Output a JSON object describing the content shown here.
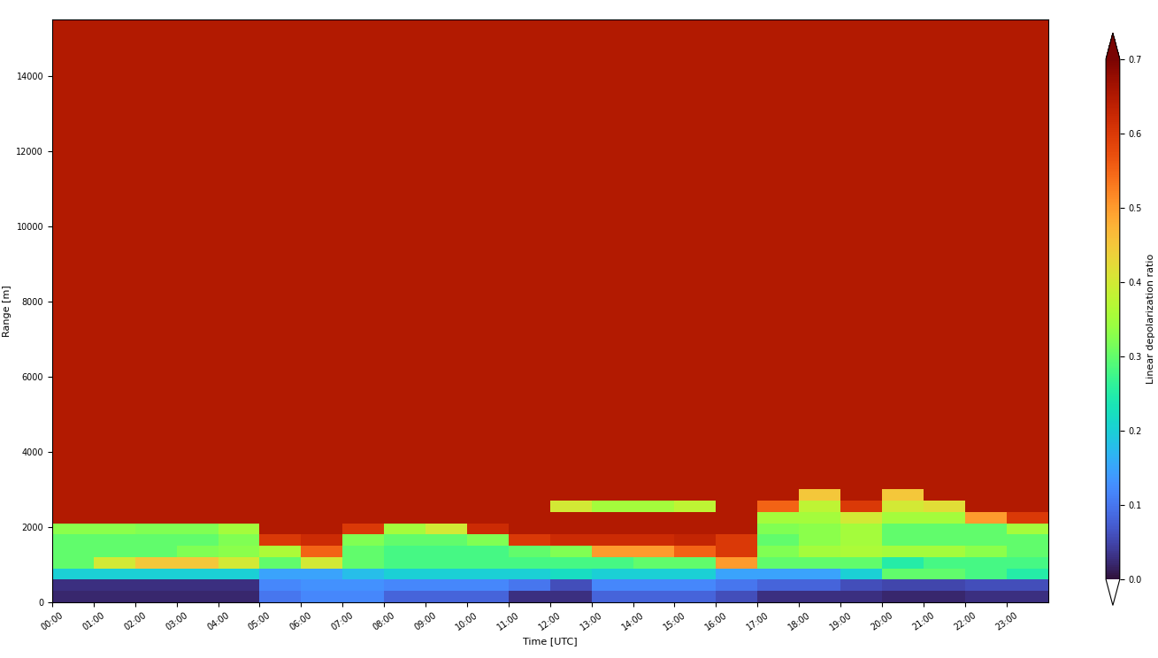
{
  "chart_data": {
    "type": "heatmap",
    "xlabel": "Time [UTC]",
    "ylabel": "Range [m]",
    "x_edges": [
      0,
      1,
      2,
      3,
      4,
      5,
      6,
      7,
      8,
      9,
      10,
      11,
      12,
      13,
      14,
      15,
      16,
      17,
      18,
      19,
      20,
      21,
      22,
      23,
      24
    ],
    "y_edges": [
      0,
      300,
      600,
      900,
      1200,
      1500,
      1800,
      2100,
      2400,
      2700,
      3000,
      15500
    ],
    "cells": [
      [
        0.02,
        0.02,
        0.02,
        0.02,
        0.02,
        0.1,
        0.12,
        0.12,
        0.08,
        0.08,
        0.08,
        0.03,
        0.03,
        0.08,
        0.08,
        0.08,
        0.06,
        0.03,
        0.03,
        0.03,
        0.02,
        0.02,
        0.03,
        0.03
      ],
      [
        0.03,
        0.03,
        0.03,
        0.03,
        0.03,
        0.12,
        0.13,
        0.13,
        0.12,
        0.12,
        0.12,
        0.1,
        0.06,
        0.12,
        0.12,
        0.12,
        0.1,
        0.08,
        0.08,
        0.06,
        0.05,
        0.05,
        0.06,
        0.06
      ],
      [
        0.2,
        0.2,
        0.2,
        0.2,
        0.2,
        0.15,
        0.15,
        0.18,
        0.2,
        0.2,
        0.2,
        0.2,
        0.22,
        0.2,
        0.2,
        0.2,
        0.15,
        0.15,
        0.15,
        0.2,
        0.3,
        0.3,
        0.28,
        0.25
      ],
      [
        0.3,
        0.4,
        0.45,
        0.45,
        0.4,
        0.3,
        0.4,
        0.3,
        0.28,
        0.28,
        0.28,
        0.28,
        0.28,
        0.28,
        0.3,
        0.3,
        0.5,
        0.3,
        0.3,
        0.3,
        0.25,
        0.28,
        0.28,
        0.28
      ],
      [
        0.3,
        0.3,
        0.3,
        0.32,
        0.33,
        0.36,
        0.55,
        0.3,
        0.28,
        0.28,
        0.28,
        0.3,
        0.32,
        0.5,
        0.5,
        0.55,
        0.6,
        0.32,
        0.35,
        0.36,
        0.35,
        0.35,
        0.33,
        0.3
      ],
      [
        0.3,
        0.3,
        0.3,
        0.3,
        0.32,
        0.6,
        0.62,
        0.32,
        0.3,
        0.3,
        0.32,
        0.6,
        0.62,
        0.62,
        0.62,
        0.63,
        0.6,
        0.3,
        0.33,
        0.35,
        0.3,
        0.3,
        0.3,
        0.3
      ],
      [
        0.33,
        0.33,
        0.32,
        0.32,
        0.35,
        0.65,
        0.65,
        0.6,
        0.35,
        0.4,
        0.62,
        0.65,
        0.65,
        0.65,
        0.65,
        0.65,
        0.65,
        0.32,
        0.33,
        0.35,
        0.3,
        0.3,
        0.3,
        0.35
      ],
      [
        0.65,
        0.65,
        0.65,
        0.65,
        0.65,
        0.65,
        0.65,
        0.65,
        0.65,
        0.65,
        0.65,
        0.65,
        0.65,
        0.65,
        0.65,
        0.65,
        0.65,
        0.35,
        0.35,
        0.4,
        0.35,
        0.35,
        0.5,
        0.6
      ],
      [
        0.65,
        0.65,
        0.65,
        0.65,
        0.65,
        0.65,
        0.65,
        0.65,
        0.65,
        0.65,
        0.65,
        0.65,
        0.4,
        0.35,
        0.35,
        0.38,
        0.65,
        0.55,
        0.38,
        0.6,
        0.4,
        0.42,
        0.65,
        0.65
      ],
      [
        0.65,
        0.65,
        0.65,
        0.65,
        0.65,
        0.65,
        0.65,
        0.65,
        0.65,
        0.65,
        0.65,
        0.65,
        0.65,
        0.65,
        0.65,
        0.65,
        0.65,
        0.65,
        0.45,
        0.65,
        0.45,
        0.65,
        0.65,
        0.65
      ],
      [
        0.65,
        0.65,
        0.65,
        0.65,
        0.65,
        0.65,
        0.65,
        0.65,
        0.65,
        0.65,
        0.65,
        0.65,
        0.65,
        0.65,
        0.65,
        0.65,
        0.65,
        0.65,
        0.65,
        0.65,
        0.65,
        0.65,
        0.65,
        0.65
      ]
    ],
    "xlim": [
      0,
      24
    ],
    "ylim": [
      0,
      15500
    ],
    "xticks": [
      {
        "value": 0,
        "label": "00:00"
      },
      {
        "value": 1,
        "label": "01:00"
      },
      {
        "value": 2,
        "label": "02:00"
      },
      {
        "value": 3,
        "label": "03:00"
      },
      {
        "value": 4,
        "label": "04:00"
      },
      {
        "value": 5,
        "label": "05:00"
      },
      {
        "value": 6,
        "label": "06:00"
      },
      {
        "value": 7,
        "label": "07:00"
      },
      {
        "value": 8,
        "label": "08:00"
      },
      {
        "value": 9,
        "label": "09:00"
      },
      {
        "value": 10,
        "label": "10:00"
      },
      {
        "value": 11,
        "label": "11:00"
      },
      {
        "value": 12,
        "label": "12:00"
      },
      {
        "value": 13,
        "label": "13:00"
      },
      {
        "value": 14,
        "label": "14:00"
      },
      {
        "value": 15,
        "label": "15:00"
      },
      {
        "value": 16,
        "label": "16:00"
      },
      {
        "value": 17,
        "label": "17:00"
      },
      {
        "value": 18,
        "label": "18:00"
      },
      {
        "value": 19,
        "label": "19:00"
      },
      {
        "value": 20,
        "label": "20:00"
      },
      {
        "value": 21,
        "label": "21:00"
      },
      {
        "value": 22,
        "label": "22:00"
      },
      {
        "value": 23,
        "label": "23:00"
      }
    ],
    "yticks": [
      0,
      2000,
      4000,
      6000,
      8000,
      10000,
      12000,
      14000
    ],
    "colorbar": {
      "label": "Linear depolarization ratio",
      "range": [
        0.0,
        0.7
      ],
      "ticks": [
        0.0,
        0.1,
        0.2,
        0.3,
        0.4,
        0.5,
        0.6,
        0.7
      ]
    }
  }
}
